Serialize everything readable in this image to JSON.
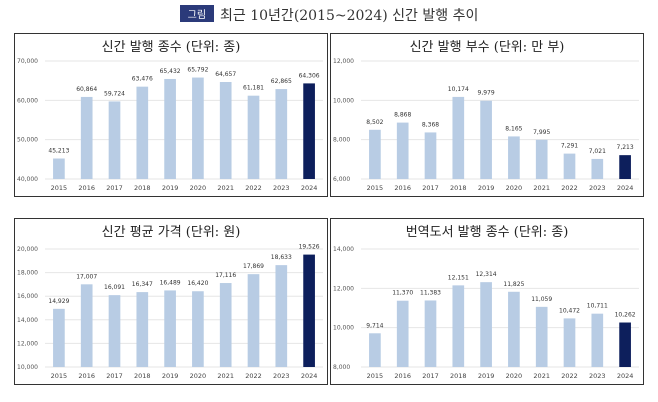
{
  "figure": {
    "badge": "그림",
    "title": "최근 10년간(2015~2024) 신간 발행 추이"
  },
  "colors": {
    "bar": "#b8cce4",
    "highlight_bar": "#0d1f5c",
    "grid": "#e6e6e6"
  },
  "chart_data": [
    {
      "type": "bar",
      "title": "신간 발행 종수 (단위: 종)",
      "categories": [
        "2015",
        "2016",
        "2017",
        "2018",
        "2019",
        "2020",
        "2021",
        "2022",
        "2023",
        "2024"
      ],
      "values": [
        45213,
        60864,
        59724,
        63476,
        65432,
        65792,
        64657,
        61181,
        62865,
        64306
      ],
      "data_labels": [
        "45,213",
        "60,864",
        "59,724",
        "63,476",
        "65,432",
        "65,792",
        "64,657",
        "61,181",
        "62,865",
        "64,306"
      ],
      "ylim": [
        40000,
        70000
      ],
      "yticks": [
        "40,000",
        "50,000",
        "60,000",
        "70,000"
      ],
      "grid": true,
      "highlight": "2024"
    },
    {
      "type": "bar",
      "title": "신간 발행 부수 (단위: 만 부)",
      "categories": [
        "2015",
        "2016",
        "2017",
        "2018",
        "2019",
        "2020",
        "2021",
        "2022",
        "2023",
        "2024"
      ],
      "values": [
        8502,
        8868,
        8368,
        10174,
        9979,
        8165,
        7995,
        7291,
        7021,
        7213
      ],
      "data_labels": [
        "8,502",
        "8,868",
        "8,368",
        "10,174",
        "9,979",
        "8,165",
        "7,995",
        "7,291",
        "7,021",
        "7,213"
      ],
      "ylim": [
        6000,
        12000
      ],
      "yticks": [
        "6,000",
        "8,000",
        "10,000",
        "12,000"
      ],
      "grid": true,
      "highlight": "2024"
    },
    {
      "type": "bar",
      "title": "신간 평균 가격 (단위: 원)",
      "categories": [
        "2015",
        "2016",
        "2017",
        "2018",
        "2019",
        "2020",
        "2021",
        "2022",
        "2023",
        "2024"
      ],
      "values": [
        14929,
        17007,
        16091,
        16347,
        16489,
        16420,
        17116,
        17869,
        18633,
        19526
      ],
      "data_labels": [
        "14,929",
        "17,007",
        "16,091",
        "16,347",
        "16,489",
        "16,420",
        "17,116",
        "17,869",
        "18,633",
        "19,526"
      ],
      "ylim": [
        10000,
        20000
      ],
      "yticks": [
        "10,000",
        "12,000",
        "14,000",
        "16,000",
        "18,000",
        "20,000"
      ],
      "grid": true,
      "highlight": "2024"
    },
    {
      "type": "bar",
      "title": "번역도서 발행 종수 (단위: 종)",
      "categories": [
        "2015",
        "2016",
        "2017",
        "2018",
        "2019",
        "2020",
        "2021",
        "2022",
        "2023",
        "2024"
      ],
      "values": [
        9714,
        11370,
        11383,
        12151,
        12314,
        11825,
        11059,
        10472,
        10711,
        10262
      ],
      "data_labels": [
        "9,714",
        "11,370",
        "11,383",
        "12,151",
        "12,314",
        "11,825",
        "11,059",
        "10,472",
        "10,711",
        "10,262"
      ],
      "ylim": [
        8000,
        14000
      ],
      "yticks": [
        "8,000",
        "10,000",
        "12,000",
        "14,000"
      ],
      "grid": true,
      "highlight": "2024"
    }
  ]
}
